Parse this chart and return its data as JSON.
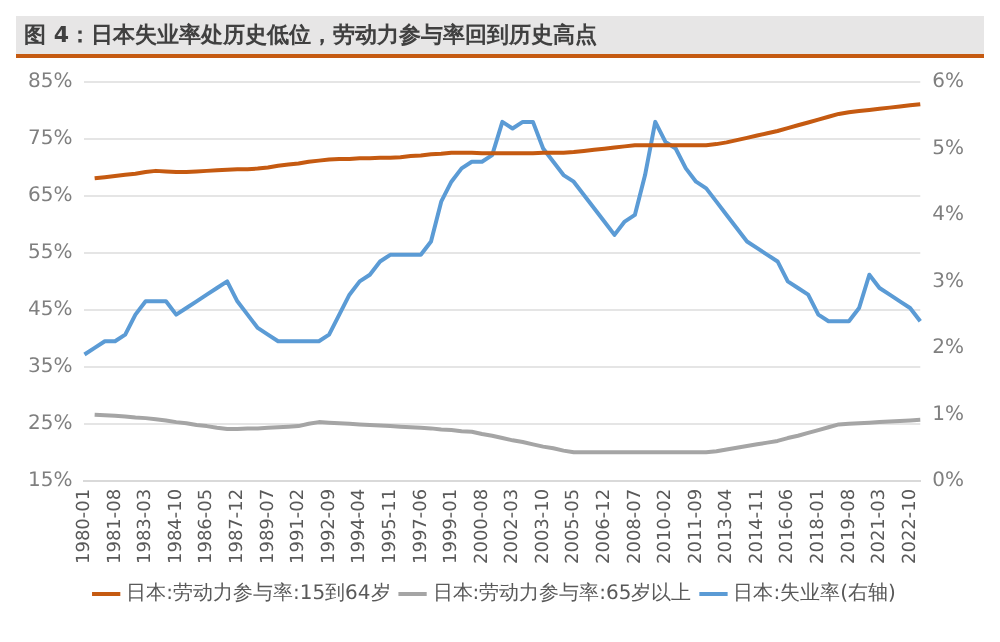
{
  "chart_data": {
    "type": "line",
    "title": "图 4：日本失业率处历史低位，劳动力参与率回到历史高点",
    "categories": [
      "1980-01",
      null,
      null,
      "1981-08",
      null,
      null,
      "1983-03",
      null,
      null,
      "1984-10",
      null,
      null,
      "1986-05",
      null,
      null,
      "1987-12",
      null,
      null,
      "1989-07",
      null,
      null,
      "1991-02",
      null,
      null,
      "1992-09",
      null,
      null,
      "1994-04",
      null,
      null,
      "1995-11",
      null,
      null,
      "1997-06",
      null,
      null,
      "1999-01",
      null,
      null,
      "2000-08",
      null,
      null,
      "2002-03",
      null,
      null,
      "2003-10",
      null,
      null,
      "2005-05",
      null,
      null,
      "2006-12",
      null,
      null,
      "2008-07",
      null,
      null,
      "2010-02",
      null,
      null,
      "2011-09",
      null,
      null,
      "2013-04",
      null,
      null,
      "2014-11",
      null,
      null,
      "2016-06",
      null,
      null,
      "2018-01",
      null,
      null,
      "2019-08",
      null,
      null,
      "2021-03",
      null,
      null,
      "2022-10",
      null
    ],
    "series": [
      {
        "name": "日本:劳动力参与率:15到64岁",
        "color": "#c55a11",
        "values": [
          null,
          68.1,
          68.3,
          68.5,
          68.7,
          68.9,
          69.2,
          69.4,
          69.3,
          69.2,
          69.2,
          69.3,
          69.4,
          69.5,
          69.6,
          69.7,
          69.7,
          69.8,
          70.0,
          70.3,
          70.5,
          70.7,
          71.0,
          71.2,
          71.4,
          71.5,
          71.5,
          71.6,
          71.6,
          71.7,
          71.7,
          71.8,
          72.0,
          72.1,
          72.3,
          72.4,
          72.6,
          72.6,
          72.6,
          72.5,
          72.5,
          72.5,
          72.5,
          72.5,
          72.5,
          72.6,
          72.6,
          72.6,
          72.7,
          72.9,
          73.1,
          73.3,
          73.5,
          73.7,
          73.9,
          73.9,
          73.9,
          73.9,
          73.9,
          73.9,
          73.9,
          73.9,
          74.1,
          74.4,
          74.8,
          75.2,
          75.6,
          76.0,
          76.4,
          76.9,
          77.4,
          77.9,
          78.4,
          78.9,
          79.4,
          79.7,
          79.9,
          80.1,
          80.3,
          80.5,
          80.7,
          80.9,
          81.1
        ]
      },
      {
        "name": "日本:劳动力参与率:65岁以上",
        "color": "#a5a5a5",
        "values": [
          null,
          26.6,
          26.5,
          26.4,
          26.3,
          26.1,
          26.0,
          25.8,
          25.6,
          25.3,
          25.1,
          24.8,
          24.6,
          24.3,
          24.1,
          24.1,
          24.2,
          24.2,
          24.3,
          24.4,
          24.5,
          24.6,
          25.0,
          25.3,
          25.2,
          25.1,
          25.0,
          24.9,
          24.8,
          24.7,
          24.6,
          24.5,
          24.4,
          24.3,
          24.2,
          24.0,
          23.9,
          23.7,
          23.6,
          23.2,
          22.9,
          22.5,
          22.1,
          21.8,
          21.4,
          21.0,
          20.7,
          20.3,
          20.0,
          20.0,
          20.0,
          20.0,
          20.0,
          20.0,
          20.0,
          20.0,
          20.0,
          20.0,
          20.0,
          20.0,
          20.0,
          20.0,
          20.2,
          20.5,
          20.8,
          21.1,
          21.4,
          21.7,
          22.0,
          22.5,
          22.9,
          23.4,
          23.9,
          24.4,
          24.9,
          25.0,
          25.1,
          25.2,
          25.3,
          25.4,
          25.5,
          25.6,
          25.7
        ]
      },
      {
        "name": "日本:失业率(右轴)",
        "color": "#5b9bd5",
        "axis": "y2",
        "values": [
          1.9,
          2.0,
          2.1,
          2.1,
          2.2,
          2.5,
          2.7,
          2.7,
          2.7,
          2.5,
          2.6,
          2.7,
          2.8,
          2.9,
          3.0,
          2.7,
          2.5,
          2.3,
          2.2,
          2.1,
          2.1,
          2.1,
          2.1,
          2.1,
          2.2,
          2.5,
          2.8,
          3.0,
          3.1,
          3.3,
          3.4,
          3.4,
          3.4,
          3.4,
          3.6,
          4.2,
          4.5,
          4.7,
          4.8,
          4.8,
          4.9,
          5.4,
          5.3,
          5.4,
          5.4,
          5.0,
          4.8,
          4.6,
          4.5,
          4.3,
          4.1,
          3.9,
          3.7,
          3.9,
          4.0,
          4.6,
          5.4,
          5.1,
          5.0,
          4.7,
          4.5,
          4.4,
          4.2,
          4.0,
          3.8,
          3.6,
          3.5,
          3.4,
          3.3,
          3.0,
          2.9,
          2.8,
          2.5,
          2.4,
          2.4,
          2.4,
          2.6,
          3.1,
          2.9,
          2.8,
          2.7,
          2.6,
          2.4
        ]
      }
    ],
    "ylim": [
      15,
      85
    ],
    "yticks": [
      {
        "value": 15,
        "label": "15%"
      },
      {
        "value": 25,
        "label": "25%"
      },
      {
        "value": 35,
        "label": "35%"
      },
      {
        "value": 45,
        "label": "45%"
      },
      {
        "value": 55,
        "label": "55%"
      },
      {
        "value": 65,
        "label": "65%"
      },
      {
        "value": 75,
        "label": "75%"
      },
      {
        "value": 85,
        "label": "85%"
      }
    ],
    "y2lim": [
      0,
      6
    ],
    "y2ticks": [
      {
        "value": 0,
        "label": "0%"
      },
      {
        "value": 1,
        "label": "1%"
      },
      {
        "value": 2,
        "label": "2%"
      },
      {
        "value": 3,
        "label": "3%"
      },
      {
        "value": 4,
        "label": "4%"
      },
      {
        "value": 5,
        "label": "5%"
      },
      {
        "value": 6,
        "label": "6%"
      }
    ],
    "grid": "y",
    "legend": "bottom",
    "marker": "none",
    "line_style": "solid"
  }
}
